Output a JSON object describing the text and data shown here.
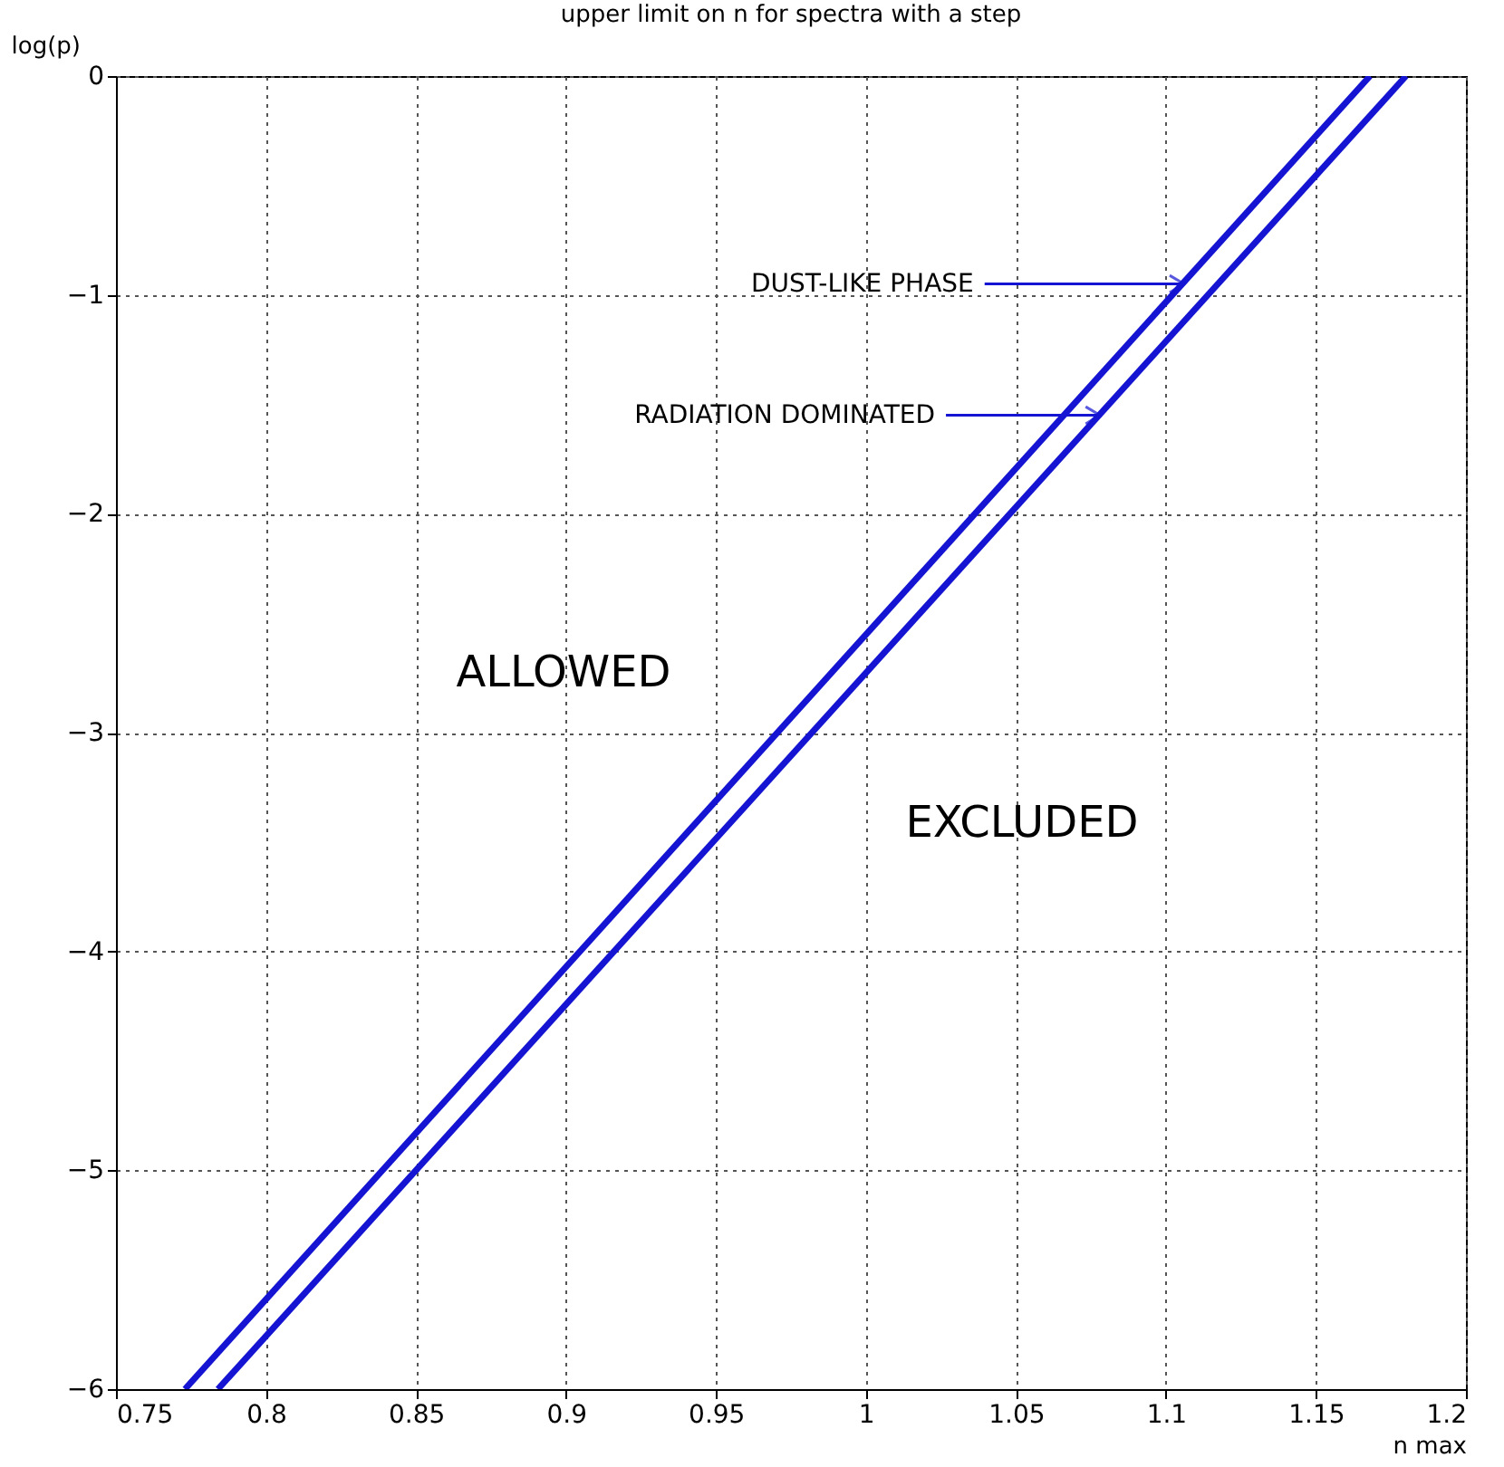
{
  "chart_data": {
    "type": "line",
    "title": "upper limit on n for spectra with a step",
    "xlabel": "n max",
    "ylabel": "log(p)",
    "xlim": [
      0.75,
      1.2
    ],
    "xticks": [
      0.75,
      0.8,
      0.85,
      0.9,
      0.95,
      1,
      1.05,
      1.1,
      1.15,
      1.2
    ],
    "ylim": [
      -6,
      0
    ],
    "yticks": [
      -6,
      -5,
      -4,
      -3,
      -2,
      -1,
      0
    ],
    "grid": true,
    "marker": "none",
    "line_style": "solid",
    "series": [
      {
        "color": "#1414d2",
        "x": [
          0.773,
          1.168
        ],
        "values": [
          -6,
          0
        ]
      },
      {
        "color": "#1414d2",
        "x": [
          0.784,
          1.18
        ],
        "values": [
          -6,
          0
        ]
      }
    ],
    "annotations": [
      {
        "text": "DUST-LIKE PHASE",
        "x": 1.106,
        "y": -0.95
      },
      {
        "text": "RADIATION DOMINATED",
        "x": 1.078,
        "y": -1.55
      },
      "ALLOWED",
      "EXCLUDED"
    ]
  }
}
